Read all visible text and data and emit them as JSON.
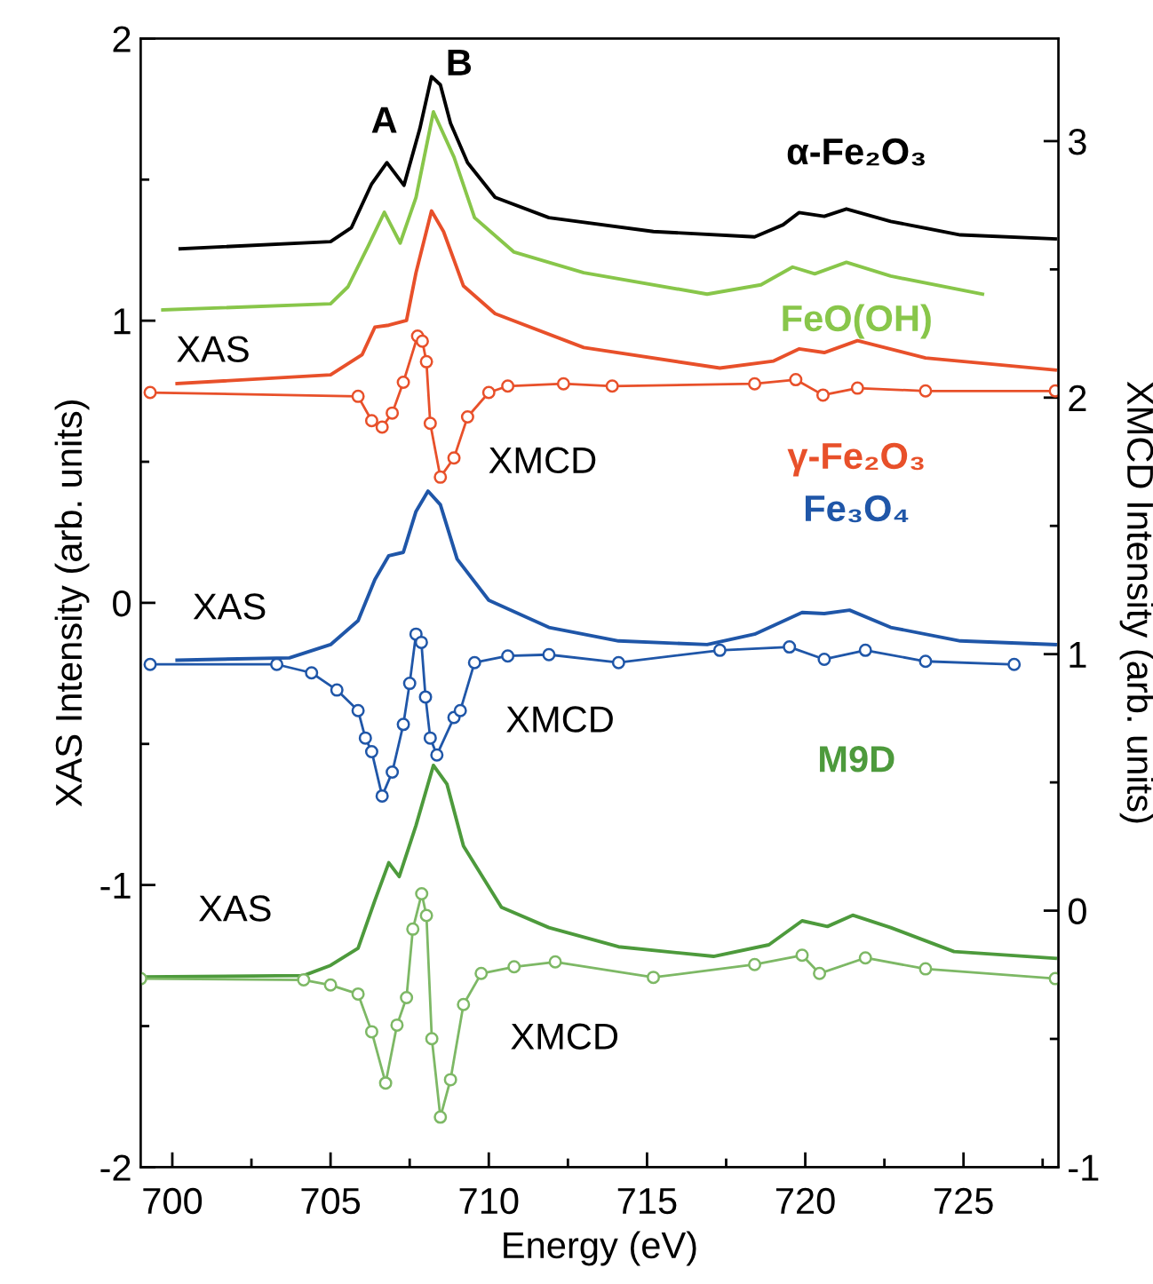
{
  "chart_data": {
    "type": "line",
    "xlabel": "Energy (eV)",
    "ylabel": "XAS Intensity (arb. units)",
    "y2label": "XMCD Intensity (arb. units)",
    "xlim": [
      699,
      728
    ],
    "xticks": [
      700,
      {
        "value": 702.5,
        "label": null
      },
      705,
      {
        "value": 707.5,
        "label": null
      },
      710,
      {
        "value": 712.5,
        "label": null
      },
      715,
      {
        "value": 717.5,
        "label": null
      },
      720,
      {
        "value": 722.5,
        "label": null
      },
      725,
      {
        "value": 727.5,
        "label": null
      }
    ],
    "ylim": [
      -2,
      2
    ],
    "yticks": [
      -2,
      {
        "value": -1.5,
        "label": null
      },
      -1,
      {
        "value": -0.5,
        "label": null
      },
      0,
      {
        "value": 0.5,
        "label": null
      },
      1,
      {
        "value": 1.5,
        "label": null
      },
      2
    ],
    "y2lim": [
      -1,
      3.4
    ],
    "y2ticks": [
      -1,
      {
        "value": -0.5,
        "label": null
      },
      0,
      {
        "value": 0.5,
        "label": null
      },
      1,
      {
        "value": 1.5,
        "label": null
      },
      2,
      {
        "value": 2.5,
        "label": null
      },
      3
    ],
    "grid": false,
    "legend": false,
    "series": [
      {
        "name": "α-Fe₂O₃",
        "color": "#000000",
        "marker": "none",
        "x": [
          700.25,
          705.0,
          705.66,
          706.3,
          706.78,
          707.32,
          707.82,
          708.19,
          708.47,
          708.79,
          709.33,
          710.2,
          711.9,
          715.2,
          718.4,
          719.3,
          719.8,
          720.6,
          721.3,
          722.7,
          724.9,
          727.9
        ],
        "values": [
          1.255,
          1.28,
          1.33,
          1.485,
          1.56,
          1.48,
          1.68,
          1.865,
          1.836,
          1.7,
          1.56,
          1.437,
          1.365,
          1.316,
          1.297,
          1.34,
          1.383,
          1.37,
          1.396,
          1.352,
          1.304,
          1.29
        ]
      },
      {
        "name": "FeO(OH)",
        "color": "#88c64a",
        "marker": "none",
        "x": [
          699.7,
          705.0,
          705.55,
          706.2,
          706.7,
          707.2,
          707.7,
          708.25,
          708.9,
          709.55,
          710.8,
          713.0,
          716.9,
          718.6,
          719.6,
          720.3,
          721.3,
          722.7,
          725.6
        ],
        "values": [
          1.038,
          1.06,
          1.12,
          1.267,
          1.384,
          1.275,
          1.437,
          1.74,
          1.58,
          1.365,
          1.243,
          1.17,
          1.094,
          1.127,
          1.19,
          1.166,
          1.207,
          1.158,
          1.094
        ]
      },
      {
        "name": "γ-Fe₂O₃",
        "color": "#e8502a",
        "marker": "none",
        "x": [
          700.15,
          705.0,
          706.0,
          706.4,
          706.84,
          707.4,
          707.7,
          708.19,
          708.57,
          709.2,
          710.2,
          713.0,
          717.3,
          719.0,
          719.8,
          720.6,
          721.65,
          723.8,
          727.9
        ],
        "values": [
          0.777,
          0.808,
          0.88,
          0.977,
          0.984,
          1.001,
          1.17,
          1.389,
          1.316,
          1.123,
          1.025,
          0.905,
          0.832,
          0.857,
          0.9,
          0.887,
          0.929,
          0.868,
          0.825
        ]
      },
      {
        "color": "#e8502a",
        "axis": "y2",
        "marker": "circle",
        "x": [
          699.3,
          705.87,
          706.3,
          706.63,
          706.95,
          707.3,
          707.75,
          707.9,
          708.03,
          708.15,
          708.47,
          708.9,
          709.33,
          710.0,
          710.6,
          712.36,
          713.9,
          718.4,
          719.7,
          720.56,
          721.65,
          723.8,
          727.9
        ],
        "values": [
          2.02,
          2.005,
          1.91,
          1.885,
          1.94,
          2.06,
          2.24,
          2.22,
          2.14,
          1.9,
          1.69,
          1.765,
          1.925,
          2.02,
          2.045,
          2.054,
          2.045,
          2.054,
          2.07,
          2.01,
          2.037,
          2.026,
          2.026
        ]
      },
      {
        "name": "Fe₃O₄",
        "color": "#1f56a8",
        "marker": "none",
        "x": [
          700.15,
          703.7,
          705.0,
          705.87,
          706.4,
          706.84,
          707.3,
          707.7,
          708.08,
          708.47,
          709.0,
          710.0,
          711.9,
          714.1,
          716.9,
          718.4,
          719.9,
          720.6,
          721.4,
          722.7,
          724.9,
          727.9
        ],
        "values": [
          -0.203,
          -0.195,
          -0.148,
          -0.063,
          0.082,
          0.167,
          0.179,
          0.324,
          0.396,
          0.348,
          0.155,
          0.009,
          -0.087,
          -0.135,
          -0.148,
          -0.111,
          -0.034,
          -0.038,
          -0.026,
          -0.087,
          -0.135,
          -0.148
        ]
      },
      {
        "color": "#1f56a8",
        "axis": "y2",
        "marker": "circle",
        "x": [
          699.3,
          703.3,
          704.4,
          705.2,
          705.87,
          706.1,
          706.3,
          706.63,
          706.95,
          707.3,
          707.5,
          707.7,
          707.87,
          708.0,
          708.15,
          708.36,
          708.9,
          709.1,
          709.55,
          710.6,
          711.9,
          714.1,
          717.3,
          719.5,
          720.6,
          721.9,
          723.8,
          726.6
        ],
        "values": [
          0.96,
          0.96,
          0.927,
          0.86,
          0.78,
          0.673,
          0.62,
          0.447,
          0.54,
          0.726,
          0.886,
          1.078,
          1.046,
          0.833,
          0.673,
          0.607,
          0.753,
          0.78,
          0.967,
          0.993,
          0.998,
          0.967,
          1.015,
          1.028,
          0.98,
          1.015,
          0.972,
          0.96
        ]
      },
      {
        "name": "M9D",
        "color": "#4d9a3c",
        "marker": "none",
        "x": [
          699.0,
          704.15,
          705.0,
          705.87,
          706.4,
          706.84,
          707.17,
          707.7,
          708.25,
          708.68,
          709.2,
          710.4,
          711.9,
          714.1,
          717.1,
          718.85,
          719.9,
          720.7,
          721.5,
          722.7,
          724.7,
          727.9
        ],
        "values": [
          -1.326,
          -1.321,
          -1.285,
          -1.224,
          -1.055,
          -0.921,
          -0.97,
          -0.789,
          -0.576,
          -0.643,
          -0.862,
          -1.079,
          -1.151,
          -1.219,
          -1.253,
          -1.212,
          -1.127,
          -1.147,
          -1.107,
          -1.151,
          -1.236,
          -1.26
        ]
      },
      {
        "color": "#7db865",
        "axis": "y2",
        "marker": "circle",
        "x": [
          699.0,
          704.15,
          705.0,
          705.87,
          706.3,
          706.74,
          707.1,
          707.4,
          707.6,
          707.88,
          708.03,
          708.2,
          708.47,
          708.79,
          709.2,
          709.76,
          710.8,
          712.1,
          715.2,
          718.4,
          719.9,
          720.45,
          721.9,
          723.8,
          727.9
        ],
        "values": [
          -0.265,
          -0.27,
          -0.29,
          -0.325,
          -0.472,
          -0.672,
          -0.446,
          -0.339,
          -0.072,
          0.066,
          -0.019,
          -0.499,
          -0.805,
          -0.659,
          -0.366,
          -0.245,
          -0.219,
          -0.2,
          -0.26,
          -0.21,
          -0.174,
          -0.245,
          -0.184,
          -0.227,
          -0.265
        ]
      }
    ],
    "annotations": [
      "A",
      "B",
      "XAS",
      "XMCD",
      "XAS",
      "XMCD",
      "XAS",
      "XMCD"
    ]
  }
}
